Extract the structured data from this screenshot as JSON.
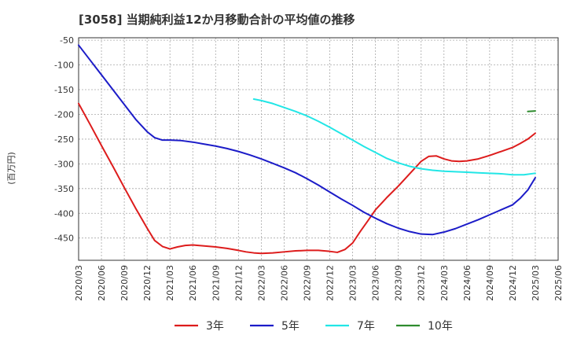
{
  "chart_data": {
    "type": "line",
    "title": "[3058]  当期純利益12か月移動合計の平均値の推移",
    "ylabel": "(百万円)",
    "xlabel": "",
    "ylim": [
      -495,
      -45
    ],
    "yticks": [
      -50,
      -100,
      -150,
      -200,
      -250,
      -300,
      -350,
      -400,
      -450
    ],
    "x_categories": [
      "2020/03",
      "2020/06",
      "2020/09",
      "2020/12",
      "2021/03",
      "2021/06",
      "2021/09",
      "2021/12",
      "2022/03",
      "2022/06",
      "2022/09",
      "2022/12",
      "2023/03",
      "2023/06",
      "2023/09",
      "2023/12",
      "2024/03",
      "2024/06",
      "2024/09",
      "2024/12",
      "2025/03",
      "2025/06"
    ],
    "series": [
      {
        "name": "3年",
        "color": "#dd1c1c",
        "points": [
          [
            0,
            -178
          ],
          [
            0.5,
            -220
          ],
          [
            1,
            -263
          ],
          [
            1.5,
            -305
          ],
          [
            2,
            -348
          ],
          [
            2.5,
            -390
          ],
          [
            3,
            -430
          ],
          [
            3.33,
            -455
          ],
          [
            3.67,
            -467
          ],
          [
            4,
            -472
          ],
          [
            4.33,
            -468
          ],
          [
            4.67,
            -465
          ],
          [
            5,
            -464
          ],
          [
            5.5,
            -466
          ],
          [
            6,
            -468
          ],
          [
            6.5,
            -471
          ],
          [
            7,
            -475
          ],
          [
            7.33,
            -478
          ],
          [
            7.67,
            -480
          ],
          [
            8,
            -481
          ],
          [
            8.5,
            -480
          ],
          [
            9,
            -478
          ],
          [
            9.5,
            -476
          ],
          [
            10,
            -475
          ],
          [
            10.5,
            -475
          ],
          [
            11,
            -477
          ],
          [
            11.33,
            -479
          ],
          [
            11.67,
            -473
          ],
          [
            12,
            -460
          ],
          [
            12.33,
            -437
          ],
          [
            12.67,
            -415
          ],
          [
            13,
            -393
          ],
          [
            13.5,
            -368
          ],
          [
            14,
            -345
          ],
          [
            14.5,
            -320
          ],
          [
            15,
            -295
          ],
          [
            15.33,
            -285
          ],
          [
            15.67,
            -284
          ],
          [
            16,
            -290
          ],
          [
            16.33,
            -294
          ],
          [
            16.67,
            -295
          ],
          [
            17,
            -294
          ],
          [
            17.5,
            -290
          ],
          [
            18,
            -283
          ],
          [
            18.5,
            -275
          ],
          [
            19,
            -267
          ],
          [
            19.33,
            -259
          ],
          [
            19.67,
            -250
          ],
          [
            20,
            -238
          ]
        ]
      },
      {
        "name": "5年",
        "color": "#1c1cc8",
        "points": [
          [
            0,
            -60
          ],
          [
            0.5,
            -90
          ],
          [
            1,
            -120
          ],
          [
            1.5,
            -150
          ],
          [
            2,
            -180
          ],
          [
            2.5,
            -210
          ],
          [
            3,
            -235
          ],
          [
            3.33,
            -247
          ],
          [
            3.67,
            -252
          ],
          [
            4,
            -252
          ],
          [
            4.5,
            -253
          ],
          [
            5,
            -256
          ],
          [
            5.5,
            -260
          ],
          [
            6,
            -264
          ],
          [
            6.5,
            -269
          ],
          [
            7,
            -275
          ],
          [
            7.5,
            -282
          ],
          [
            8,
            -290
          ],
          [
            8.5,
            -299
          ],
          [
            9,
            -308
          ],
          [
            9.5,
            -318
          ],
          [
            10,
            -330
          ],
          [
            10.5,
            -343
          ],
          [
            11,
            -357
          ],
          [
            11.5,
            -371
          ],
          [
            12,
            -384
          ],
          [
            12.5,
            -398
          ],
          [
            13,
            -410
          ],
          [
            13.5,
            -421
          ],
          [
            14,
            -430
          ],
          [
            14.5,
            -437
          ],
          [
            15,
            -442
          ],
          [
            15.5,
            -443
          ],
          [
            16,
            -438
          ],
          [
            16.5,
            -431
          ],
          [
            17,
            -422
          ],
          [
            17.5,
            -413
          ],
          [
            18,
            -403
          ],
          [
            18.5,
            -393
          ],
          [
            19,
            -383
          ],
          [
            19.33,
            -370
          ],
          [
            19.67,
            -353
          ],
          [
            20,
            -328
          ]
        ]
      },
      {
        "name": "7年",
        "color": "#22e6e6",
        "points": [
          [
            7.67,
            -169
          ],
          [
            8,
            -172
          ],
          [
            8.5,
            -178
          ],
          [
            9,
            -186
          ],
          [
            9.5,
            -194
          ],
          [
            10,
            -203
          ],
          [
            10.5,
            -214
          ],
          [
            11,
            -226
          ],
          [
            11.5,
            -239
          ],
          [
            12,
            -252
          ],
          [
            12.5,
            -265
          ],
          [
            13,
            -277
          ],
          [
            13.5,
            -289
          ],
          [
            14,
            -298
          ],
          [
            14.5,
            -305
          ],
          [
            15,
            -310
          ],
          [
            15.5,
            -313
          ],
          [
            16,
            -315
          ],
          [
            16.5,
            -316
          ],
          [
            17,
            -317
          ],
          [
            17.5,
            -318
          ],
          [
            18,
            -319
          ],
          [
            18.5,
            -320
          ],
          [
            19,
            -322
          ],
          [
            19.5,
            -322
          ],
          [
            20,
            -319
          ]
        ]
      },
      {
        "name": "10年",
        "color": "#2e8b2e",
        "points": [
          [
            19.67,
            -194
          ],
          [
            20,
            -193
          ]
        ]
      }
    ]
  }
}
